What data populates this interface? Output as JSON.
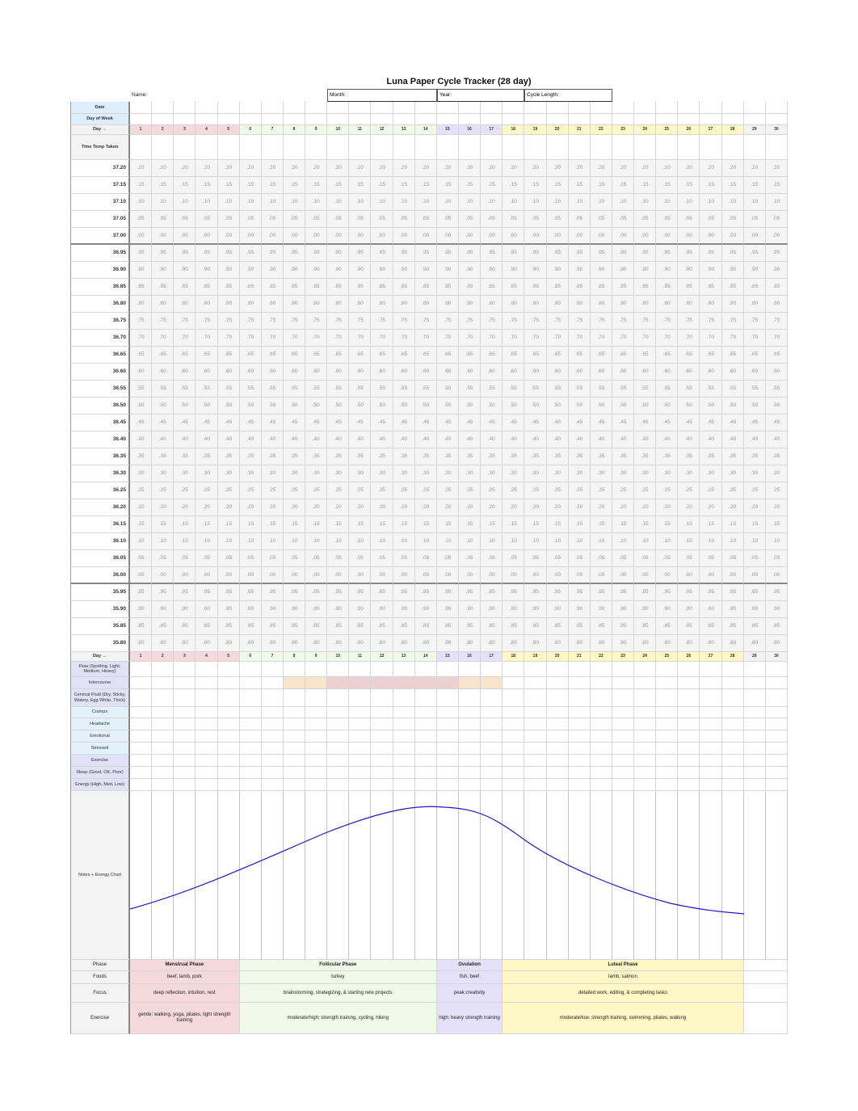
{
  "title": "Luna Paper Cycle Tracker (28 day)",
  "header_fields": {
    "name": "Name:",
    "month": "Month:",
    "year": "Year:",
    "cycle_length": "Cycle Length:"
  },
  "row_labels": {
    "date": "Date",
    "day_of_week": "Day of Week",
    "day": "Day →",
    "time_temp": "Time Temp Taken"
  },
  "days": [
    1,
    2,
    3,
    4,
    5,
    6,
    7,
    8,
    9,
    10,
    11,
    12,
    13,
    14,
    15,
    16,
    17,
    18,
    19,
    20,
    21,
    22,
    23,
    24,
    25,
    26,
    27,
    28,
    29,
    30
  ],
  "temperatures": [
    "37.20",
    "37.15",
    "37.10",
    "37.05",
    "37.00",
    "36.95",
    "36.90",
    "36.85",
    "36.80",
    "36.75",
    "36.70",
    "36.65",
    "36.60",
    "36.55",
    "36.50",
    "36.45",
    "36.40",
    "36.35",
    "36.30",
    "36.25",
    "36.20",
    "36.15",
    "36.10",
    "36.05",
    "36.00",
    "35.95",
    "35.90",
    "35.85",
    "35.80"
  ],
  "temp_cell_values": [
    ".20",
    ".15",
    ".10",
    ".05",
    ".00",
    ".95",
    ".90",
    ".85",
    ".80",
    ".75",
    ".70",
    ".65",
    ".60",
    ".55",
    ".50",
    ".45",
    ".40",
    ".35",
    ".30",
    ".25",
    ".20",
    ".15",
    ".10",
    ".05",
    ".00",
    ".95",
    ".90",
    ".85",
    ".80"
  ],
  "tracking_rows": [
    {
      "label": "Flow (Spotting, Light, Medium, Heavy)",
      "color": "#e1e1f7"
    },
    {
      "label": "Intercourse",
      "color": "#e1e1f7"
    },
    {
      "label": "Cervical Fluid (Dry, Sticky, Watery, Egg White, Thick)",
      "color": "#e1e1f7"
    },
    {
      "label": "Cramps",
      "color": "#e2f1fb"
    },
    {
      "label": "Headache",
      "color": "#e2f1fb"
    },
    {
      "label": "Emotional",
      "color": "#e2f1fb"
    },
    {
      "label": "Stressed",
      "color": "#e2f1fb"
    },
    {
      "label": "Exercise",
      "color": "#e1e1f7"
    },
    {
      "label": "Sleep (Good, OK, Poor)",
      "color": "#e1e1f7"
    },
    {
      "label": "Energy (High, Med, Low)",
      "color": "#e1e1f7"
    }
  ],
  "intercourse_highlight": {
    "peach_days": [
      8,
      9,
      16,
      17
    ],
    "pink_days": [
      10,
      11,
      12,
      13,
      14,
      15
    ],
    "peach": "#f8e4cc",
    "pink": "#ecd0d4"
  },
  "notes_label": "Notes + Energy Chart",
  "phase_colors": {
    "menstrual": "#f6d9dc",
    "follicular": "#effbe8",
    "ovulation": "#e5e1fa",
    "luteal": "#fdf8c6",
    "none": "#f3f3f3"
  },
  "phase_table": {
    "row_labels": [
      "Phase",
      "Foods",
      "Focus",
      "Exercise"
    ],
    "phases": [
      {
        "key": "menstrual",
        "days": [
          1,
          5
        ],
        "name": "Menstrual Phase",
        "foods": "beef, lamb, pork",
        "focus": "deep reflection, intuition, rest",
        "exercise": "gentle: walking, yoga, pilates, light strength training"
      },
      {
        "key": "follicular",
        "days": [
          6,
          14
        ],
        "name": "Follicular Phase",
        "foods": "turkey",
        "focus": "brainstorming, strategizing, & starting new projects",
        "exercise": "moderate/high: strength training, cycling, hiking"
      },
      {
        "key": "ovulation",
        "days": [
          15,
          17
        ],
        "name": "Ovulation",
        "foods": "fish, beef",
        "focus": "peak creativity",
        "exercise": "high: heavy strength training"
      },
      {
        "key": "luteal",
        "days": [
          18,
          28
        ],
        "name": "Luteal Phase",
        "foods": "lamb, salmon",
        "focus": "detailed work, editing, & completing tasks",
        "exercise": "moderate/low: strength training, swimming, pilates, walking"
      }
    ]
  },
  "energy_curve_color": "#1a1acc"
}
